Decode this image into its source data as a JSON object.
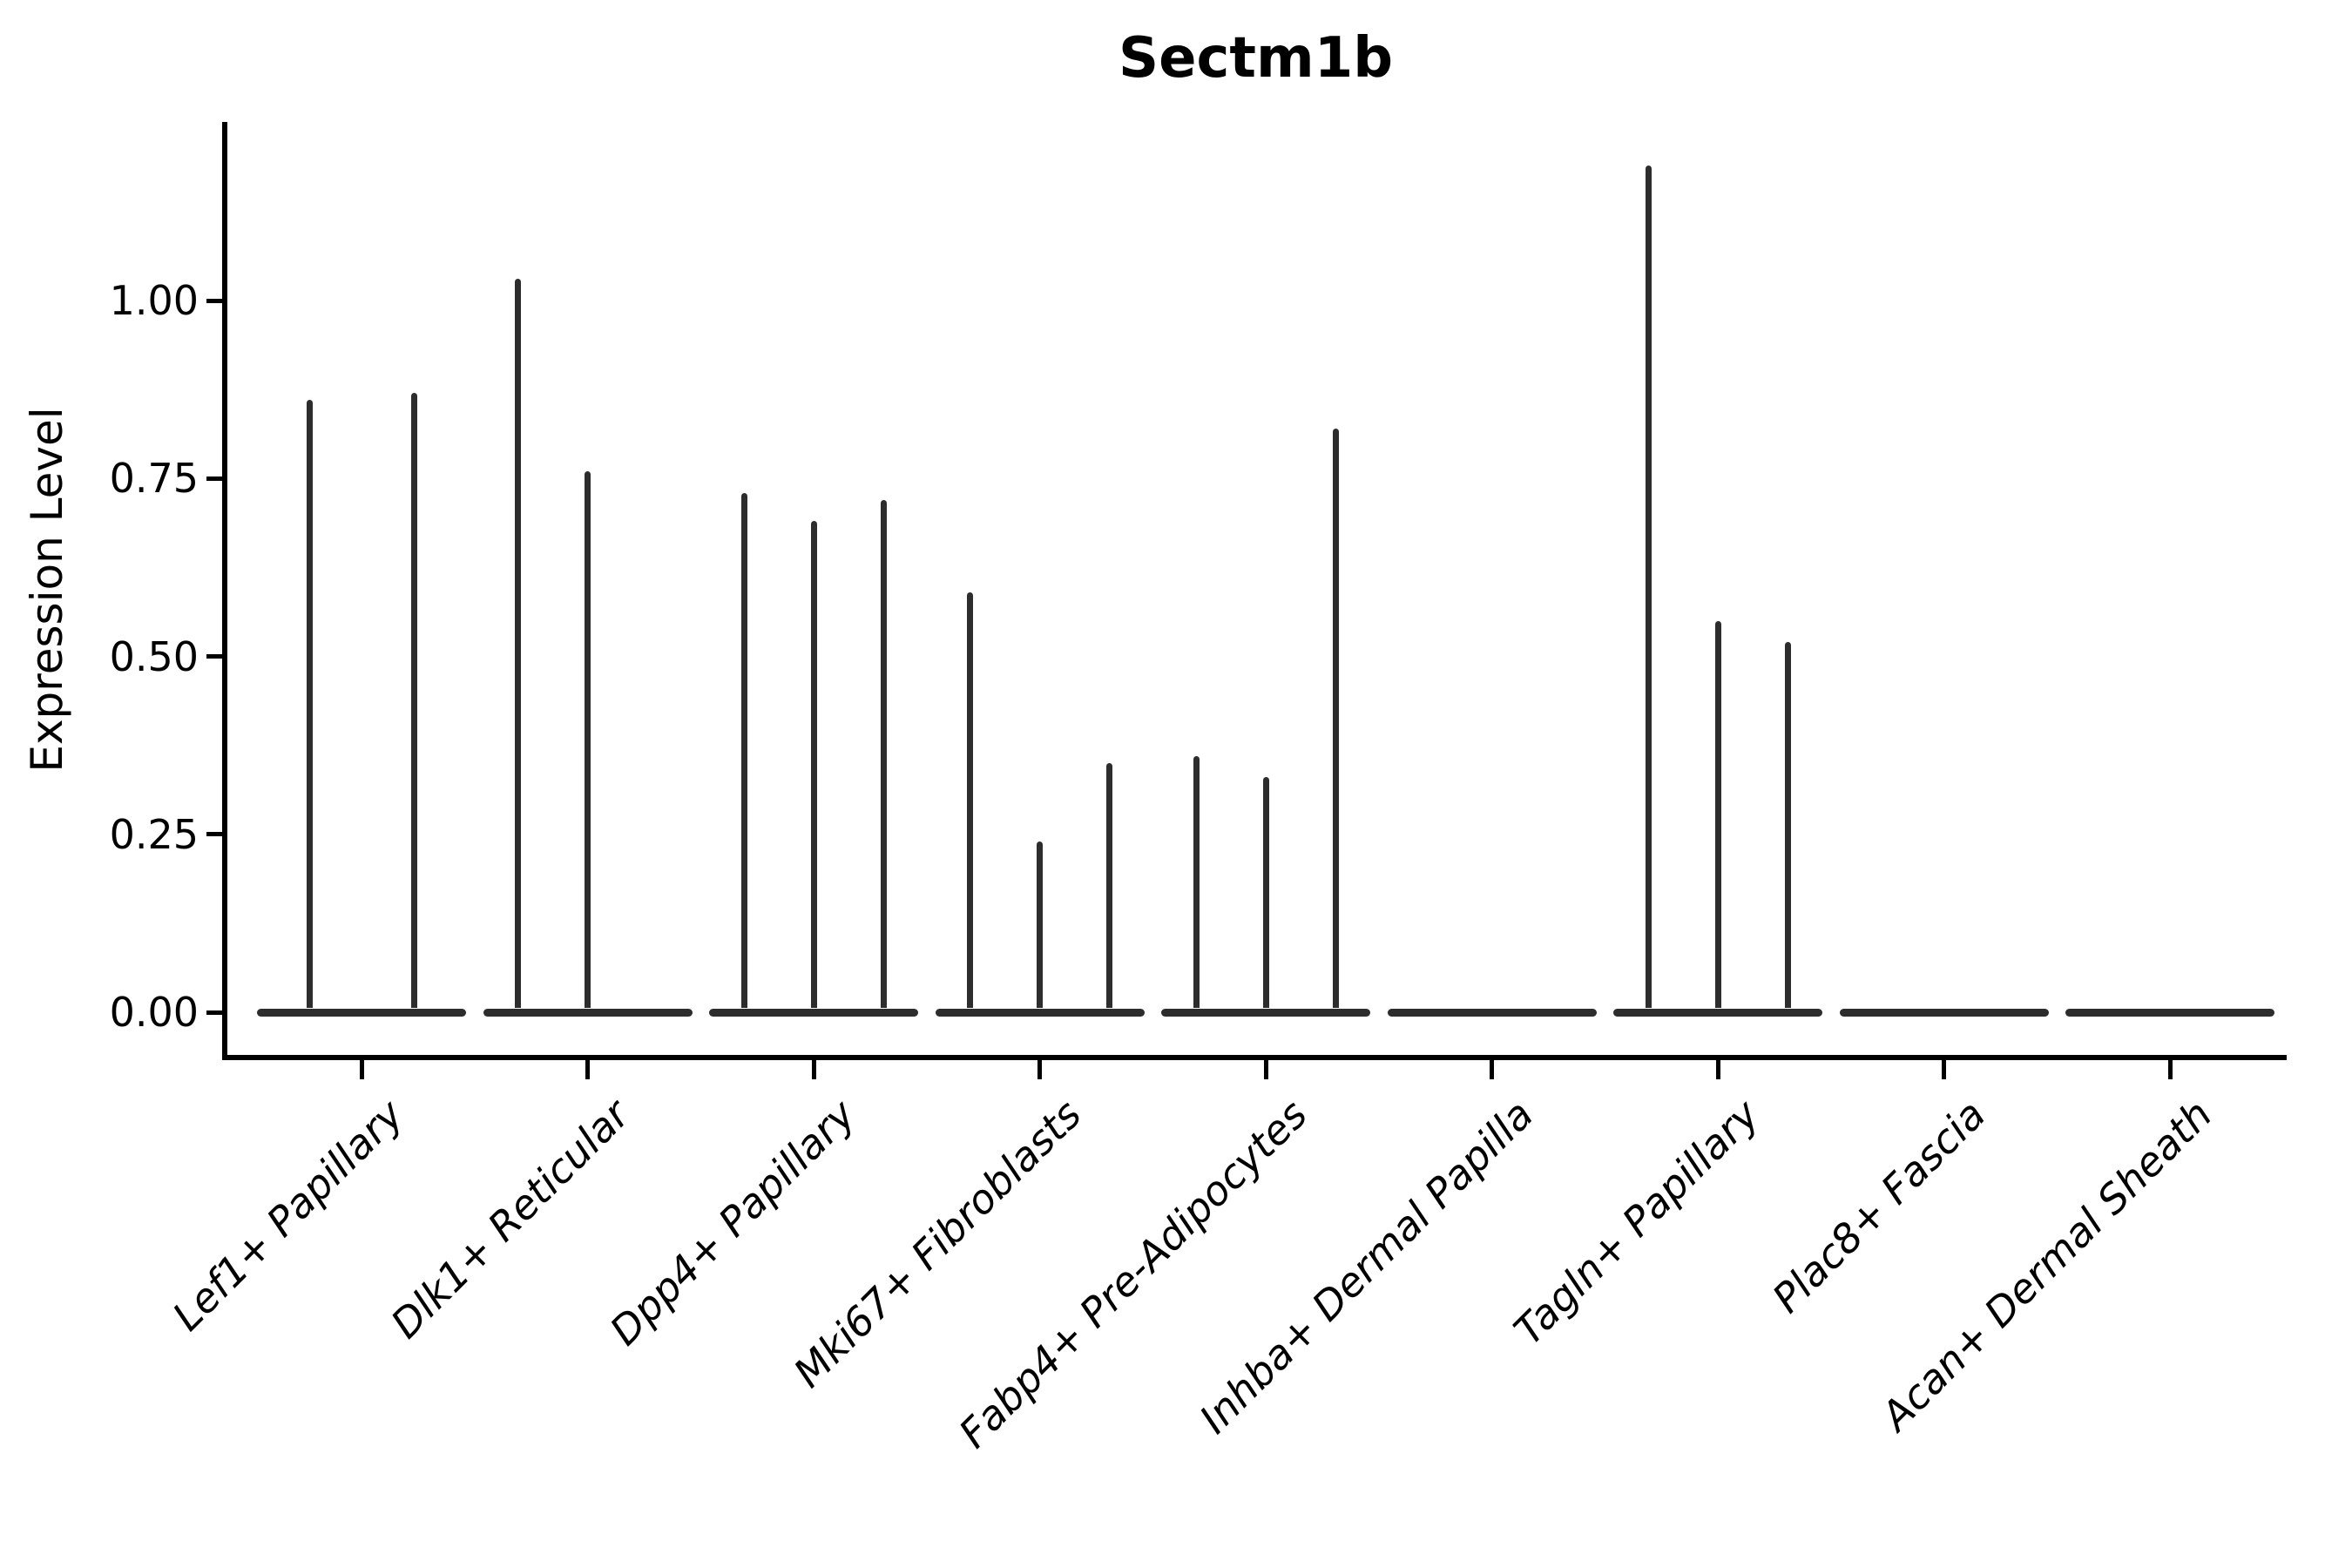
{
  "title": "Sectm1b",
  "chart_data": {
    "type": "violin",
    "title": "Sectm1b",
    "subtitle": "",
    "xlabel": "",
    "ylabel": "Expression Level",
    "ylim": [
      0,
      1.25
    ],
    "ytick_labels": [
      "0.00",
      "0.25",
      "0.50",
      "0.75",
      "1.00"
    ],
    "ytick_values": [
      0,
      0.25,
      0.5,
      0.75,
      1.0
    ],
    "grid": false,
    "legend_position": "none",
    "style_note": "Seurat-style VlnPlot: each category holds 2-3 thin zero-inflated violins drawn as a wide flat bar at 0 with a thin vertical density spike reaching the peak expression value",
    "categories": [
      "Lef1+ Papillary",
      "Dlk1+ Reticular",
      "Dpp4+ Papillary",
      "Mki67+ Fibroblasts",
      "Fabp4+ Pre-Adipocytes",
      "Inhba+ Dermal Papilla",
      "Tagln+ Papillary",
      "Plac8+ Fascia",
      "Acan+ Dermal Sheath"
    ],
    "violins": [
      {
        "category": "Lef1+ Papillary",
        "spike_peaks": [
          0.86,
          0.87
        ]
      },
      {
        "category": "Dlk1+ Reticular",
        "spike_peaks": [
          1.03,
          0.76,
          0
        ]
      },
      {
        "category": "Dpp4+ Papillary",
        "spike_peaks": [
          0.73,
          0.69,
          0.72
        ]
      },
      {
        "category": "Mki67+ Fibroblasts",
        "spike_peaks": [
          0.59,
          0.24,
          0.35
        ]
      },
      {
        "category": "Fabp4+ Pre-Adipocytes",
        "spike_peaks": [
          0.36,
          0.33,
          0.82
        ]
      },
      {
        "category": "Inhba+ Dermal Papilla",
        "spike_peaks": [
          0,
          0,
          0
        ]
      },
      {
        "category": "Tagln+ Papillary",
        "spike_peaks": [
          1.19,
          0.55,
          0.52
        ]
      },
      {
        "category": "Plac8+ Fascia",
        "spike_peaks": [
          0,
          0,
          0
        ]
      },
      {
        "category": "Acan+ Dermal Sheath",
        "spike_peaks": [
          0,
          0,
          0
        ]
      }
    ],
    "colors": {
      "violin": "#2d2d2d",
      "axis": "#000000",
      "text": "#000000",
      "background": "#ffffff"
    }
  }
}
